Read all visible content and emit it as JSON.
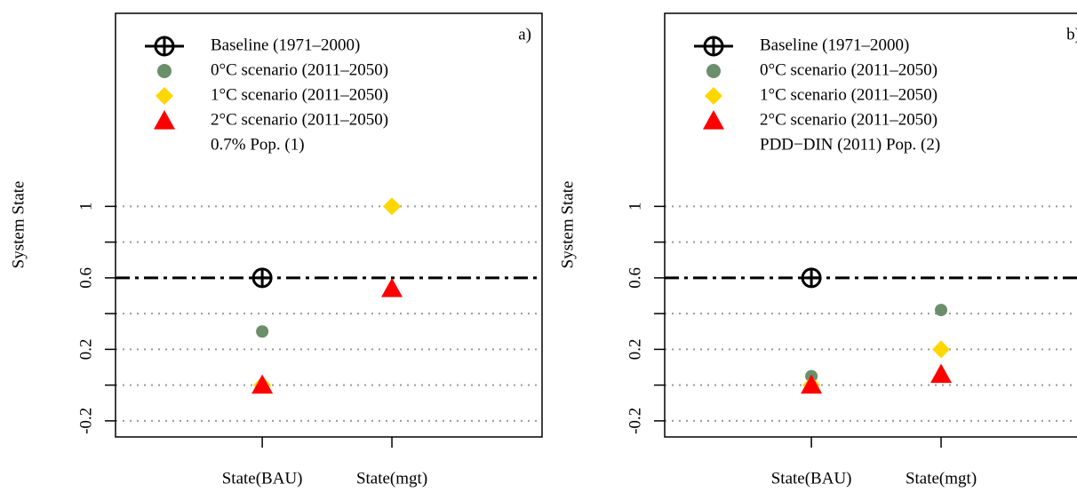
{
  "chart_data": [
    {
      "type": "scatter",
      "panel_label": "a)",
      "ylabel": "System State",
      "note": "0.7% Pop. (1)",
      "categories": [
        "State(BAU)",
        "State(mgt)"
      ],
      "ylim": [
        -0.29,
        2.08
      ],
      "yticks": [
        -0.2,
        0.2,
        0.6,
        1.0
      ],
      "yticks_minor": [
        0,
        0.4,
        0.8
      ],
      "grid": [
        -0.2,
        0,
        0.2,
        0.4,
        0.8,
        1.0
      ],
      "series": [
        {
          "name": "Baseline (1971–2000)",
          "color": "#000000",
          "marker": "baseline",
          "values": [
            0.6,
            null
          ]
        },
        {
          "name": "0°C scenario (2011–2050)",
          "color": "#6b8e6b",
          "marker": "circle",
          "values": [
            0.3,
            1.0
          ]
        },
        {
          "name": "1°C scenario (2011–2050)",
          "color": "#ffd700",
          "marker": "diamond",
          "values": [
            0.0,
            1.0
          ]
        },
        {
          "name": "2°C scenario (2011–2050)",
          "color": "#ff0000",
          "marker": "triangle",
          "values": [
            0.0,
            0.54
          ]
        }
      ]
    },
    {
      "type": "scatter",
      "panel_label": "b)",
      "ylabel": "System State",
      "note": "PDD−DIN (2011) Pop. (2)",
      "categories": [
        "State(BAU)",
        "State(mgt)"
      ],
      "ylim": [
        -0.29,
        2.08
      ],
      "yticks": [
        -0.2,
        0.2,
        0.6,
        1.0
      ],
      "yticks_minor": [
        0,
        0.4,
        0.8
      ],
      "grid": [
        -0.2,
        0,
        0.2,
        0.4,
        0.8,
        1.0
      ],
      "series": [
        {
          "name": "Baseline (1971–2000)",
          "color": "#000000",
          "marker": "baseline",
          "values": [
            0.6,
            null
          ]
        },
        {
          "name": "0°C scenario (2011–2050)",
          "color": "#6b8e6b",
          "marker": "circle",
          "values": [
            0.05,
            0.42
          ]
        },
        {
          "name": "1°C scenario (2011–2050)",
          "color": "#ffd700",
          "marker": "diamond",
          "values": [
            0.0,
            0.2
          ]
        },
        {
          "name": "2°C scenario (2011–2050)",
          "color": "#ff0000",
          "marker": "triangle",
          "values": [
            0.0,
            0.06
          ]
        }
      ]
    }
  ]
}
